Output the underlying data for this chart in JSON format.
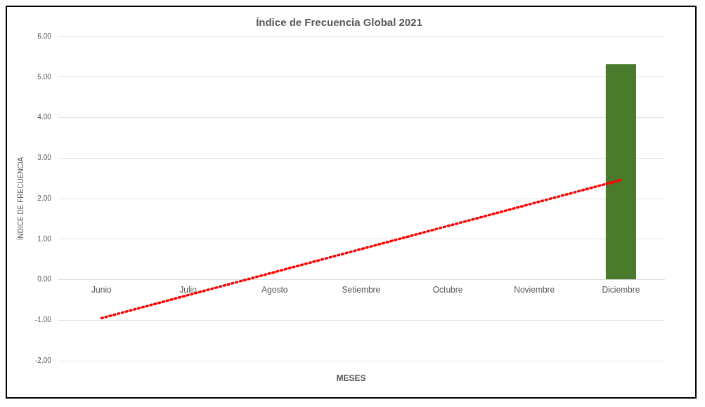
{
  "chart_data": {
    "type": "bar",
    "title": "Índice de Frecuencia Global 2021",
    "xlabel": "MESES",
    "ylabel": "ÍNDICE DE FRECUENCIA",
    "categories": [
      "Junio",
      "Julio",
      "Agosto",
      "Setiembre",
      "Octubre",
      "Noviembre",
      "Diciembre"
    ],
    "series": [
      {
        "color": "#4a7a2c",
        "values": [
          0,
          0,
          0,
          0,
          0,
          0,
          5.32
        ]
      },
      {
        "type": "line",
        "color": "#ff0000",
        "x": [
          "Junio",
          "Diciembre"
        ],
        "values": [
          -0.95,
          2.46
        ],
        "line_style": "dotted",
        "marker": "none"
      }
    ],
    "ylim": [
      -2,
      6
    ],
    "yticks": [
      {
        "value": -2,
        "label": "-2.00"
      },
      {
        "value": -1,
        "label": "-1.00"
      },
      {
        "value": 0,
        "label": "0.00"
      },
      {
        "value": 1,
        "label": "1.00"
      },
      {
        "value": 2,
        "label": "2.00"
      },
      {
        "value": 3,
        "label": "3.00"
      },
      {
        "value": 4,
        "label": "4.00"
      },
      {
        "value": 5,
        "label": "5.00"
      },
      {
        "value": 6,
        "label": "6.00"
      }
    ],
    "grid": "y",
    "legend": false
  }
}
